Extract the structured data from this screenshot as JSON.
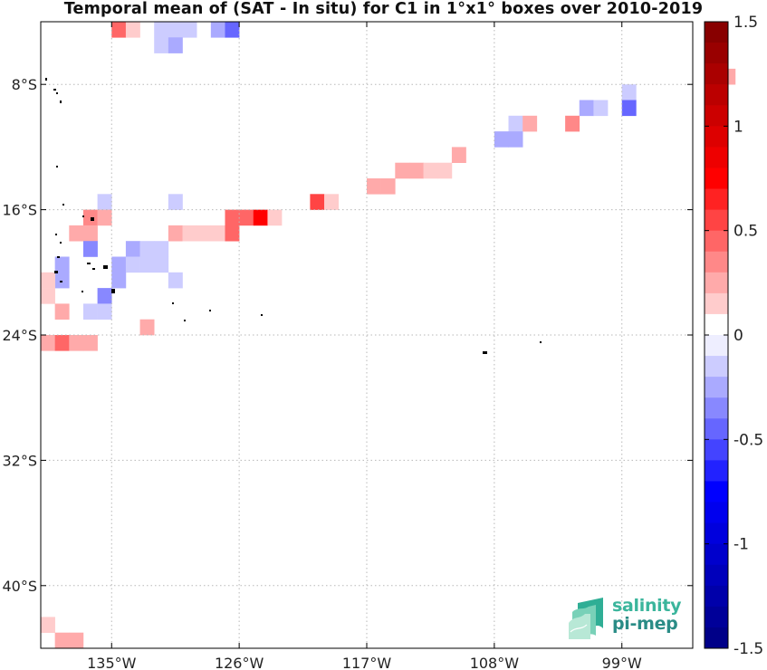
{
  "title": "Temporal mean of (SAT - In situ) for C1 in 1°x1° boxes over 2010-2019",
  "logo": {
    "line1": "salinity",
    "line2": "pi-mep"
  },
  "chart_data": {
    "type": "heatmap",
    "title": "Temporal mean of (SAT - In situ) for C1 in 1°x1° boxes over 2010-2019",
    "x_axis": {
      "range": [
        -140,
        -94
      ],
      "ticks": [
        -135,
        -126,
        -117,
        -108,
        -99
      ],
      "tick_labels": [
        "135°W",
        "126°W",
        "117°W",
        "108°W",
        "99°W"
      ]
    },
    "y_axis": {
      "range": [
        -44,
        -4
      ],
      "ticks": [
        -8,
        -16,
        -24,
        -32,
        -40
      ],
      "tick_labels": [
        "8°S",
        "16°S",
        "24°S",
        "32°S",
        "40°S"
      ]
    },
    "grid": true,
    "colorbar": {
      "min": -1.5,
      "max": 1.5,
      "step": 0.1,
      "ticks": [
        1.5,
        1,
        0.5,
        0,
        -0.5,
        -1,
        -1.5
      ],
      "tick_labels": [
        "1.5",
        "1",
        "0.5",
        "0",
        "-0.5",
        "-1",
        "-1.5"
      ],
      "low_color": "#00007f",
      "mid_color": "#ffffff",
      "high_color": "#7f0000"
    },
    "cells": [
      {
        "lon": -134.5,
        "lat": -4.5,
        "value": 0.4
      },
      {
        "lon": -133.5,
        "lat": -4.5,
        "value": 0.15
      },
      {
        "lon": -131.5,
        "lat": -4.5,
        "value": -0.15
      },
      {
        "lon": -130.5,
        "lat": -4.5,
        "value": -0.15
      },
      {
        "lon": -129.5,
        "lat": -4.5,
        "value": -0.15
      },
      {
        "lon": -127.5,
        "lat": -4.5,
        "value": -0.25
      },
      {
        "lon": -126.5,
        "lat": -4.5,
        "value": -0.4
      },
      {
        "lon": -131.5,
        "lat": -5.5,
        "value": -0.15
      },
      {
        "lon": -130.5,
        "lat": -5.5,
        "value": -0.25
      },
      {
        "lon": -92.5,
        "lat": -7.5,
        "value": 0.2
      },
      {
        "lon": -91.5,
        "lat": -7.5,
        "value": 0.2
      },
      {
        "lon": -98.5,
        "lat": -8.5,
        "value": -0.15
      },
      {
        "lon": -101.5,
        "lat": -9.5,
        "value": -0.2
      },
      {
        "lon": -100.5,
        "lat": -9.5,
        "value": -0.15
      },
      {
        "lon": -98.5,
        "lat": -9.5,
        "value": -0.4
      },
      {
        "lon": -106.5,
        "lat": -10.5,
        "value": -0.15
      },
      {
        "lon": -105.5,
        "lat": -10.5,
        "value": 0.2
      },
      {
        "lon": -102.5,
        "lat": -10.5,
        "value": 0.35
      },
      {
        "lon": -107.5,
        "lat": -11.5,
        "value": -0.2
      },
      {
        "lon": -106.5,
        "lat": -11.5,
        "value": -0.2
      },
      {
        "lon": -114.5,
        "lat": -13.5,
        "value": 0.2
      },
      {
        "lon": -113.5,
        "lat": -13.5,
        "value": 0.2
      },
      {
        "lon": -112.5,
        "lat": -13.5,
        "value": 0.15
      },
      {
        "lon": -111.5,
        "lat": -13.5,
        "value": 0.15
      },
      {
        "lon": -110.5,
        "lat": -12.5,
        "value": 0.2
      },
      {
        "lon": -116.5,
        "lat": -14.5,
        "value": 0.25
      },
      {
        "lon": -115.5,
        "lat": -14.5,
        "value": 0.25
      },
      {
        "lon": -120.5,
        "lat": -15.5,
        "value": 0.5
      },
      {
        "lon": -119.5,
        "lat": -15.5,
        "value": 0.15
      },
      {
        "lon": -135.5,
        "lat": -15.5,
        "value": -0.15
      },
      {
        "lon": -130.5,
        "lat": -15.5,
        "value": -0.15
      },
      {
        "lon": -136.5,
        "lat": -16.5,
        "value": 0.35
      },
      {
        "lon": -135.5,
        "lat": -16.5,
        "value": 0.2
      },
      {
        "lon": -126.5,
        "lat": -16.5,
        "value": 0.4
      },
      {
        "lon": -125.5,
        "lat": -16.5,
        "value": 0.45
      },
      {
        "lon": -124.5,
        "lat": -16.5,
        "value": 0.75
      },
      {
        "lon": -123.5,
        "lat": -16.5,
        "value": 0.15
      },
      {
        "lon": -137.5,
        "lat": -17.5,
        "value": 0.2
      },
      {
        "lon": -136.5,
        "lat": -17.5,
        "value": 0.2
      },
      {
        "lon": -130.5,
        "lat": -17.5,
        "value": 0.3
      },
      {
        "lon": -129.5,
        "lat": -17.5,
        "value": 0.15
      },
      {
        "lon": -128.5,
        "lat": -17.5,
        "value": 0.15
      },
      {
        "lon": -127.5,
        "lat": -17.5,
        "value": 0.15
      },
      {
        "lon": -126.5,
        "lat": -17.5,
        "value": 0.4
      },
      {
        "lon": -136.5,
        "lat": -18.5,
        "value": -0.35
      },
      {
        "lon": -133.5,
        "lat": -18.5,
        "value": -0.3
      },
      {
        "lon": -132.5,
        "lat": -18.5,
        "value": -0.15
      },
      {
        "lon": -131.5,
        "lat": -18.5,
        "value": -0.15
      },
      {
        "lon": -138.5,
        "lat": -19.5,
        "value": -0.3
      },
      {
        "lon": -134.5,
        "lat": -19.5,
        "value": -0.25
      },
      {
        "lon": -133.5,
        "lat": -19.5,
        "value": -0.15
      },
      {
        "lon": -132.5,
        "lat": -19.5,
        "value": -0.15
      },
      {
        "lon": -131.5,
        "lat": -19.5,
        "value": -0.15
      },
      {
        "lon": -138.5,
        "lat": -20.5,
        "value": -0.3
      },
      {
        "lon": -134.5,
        "lat": -20.5,
        "value": -0.25
      },
      {
        "lon": -130.5,
        "lat": -20.5,
        "value": -0.15
      },
      {
        "lon": -139.5,
        "lat": -20.5,
        "value": 0.15
      },
      {
        "lon": -139.5,
        "lat": -21.5,
        "value": 0.15
      },
      {
        "lon": -135.5,
        "lat": -21.5,
        "value": -0.35
      },
      {
        "lon": -138.5,
        "lat": -22.5,
        "value": 0.2
      },
      {
        "lon": -136.5,
        "lat": -22.5,
        "value": -0.15
      },
      {
        "lon": -135.5,
        "lat": -22.5,
        "value": -0.15
      },
      {
        "lon": -132.5,
        "lat": -23.5,
        "value": 0.2
      },
      {
        "lon": -139.5,
        "lat": -24.5,
        "value": 0.3
      },
      {
        "lon": -138.5,
        "lat": -24.5,
        "value": 0.45
      },
      {
        "lon": -137.5,
        "lat": -24.5,
        "value": 0.3
      },
      {
        "lon": -136.5,
        "lat": -24.5,
        "value": 0.2
      },
      {
        "lon": -139.5,
        "lat": -42.5,
        "value": 0.15
      },
      {
        "lon": -138.5,
        "lat": -43.5,
        "value": 0.3
      },
      {
        "lon": -137.5,
        "lat": -43.5,
        "value": 0.2
      }
    ]
  }
}
